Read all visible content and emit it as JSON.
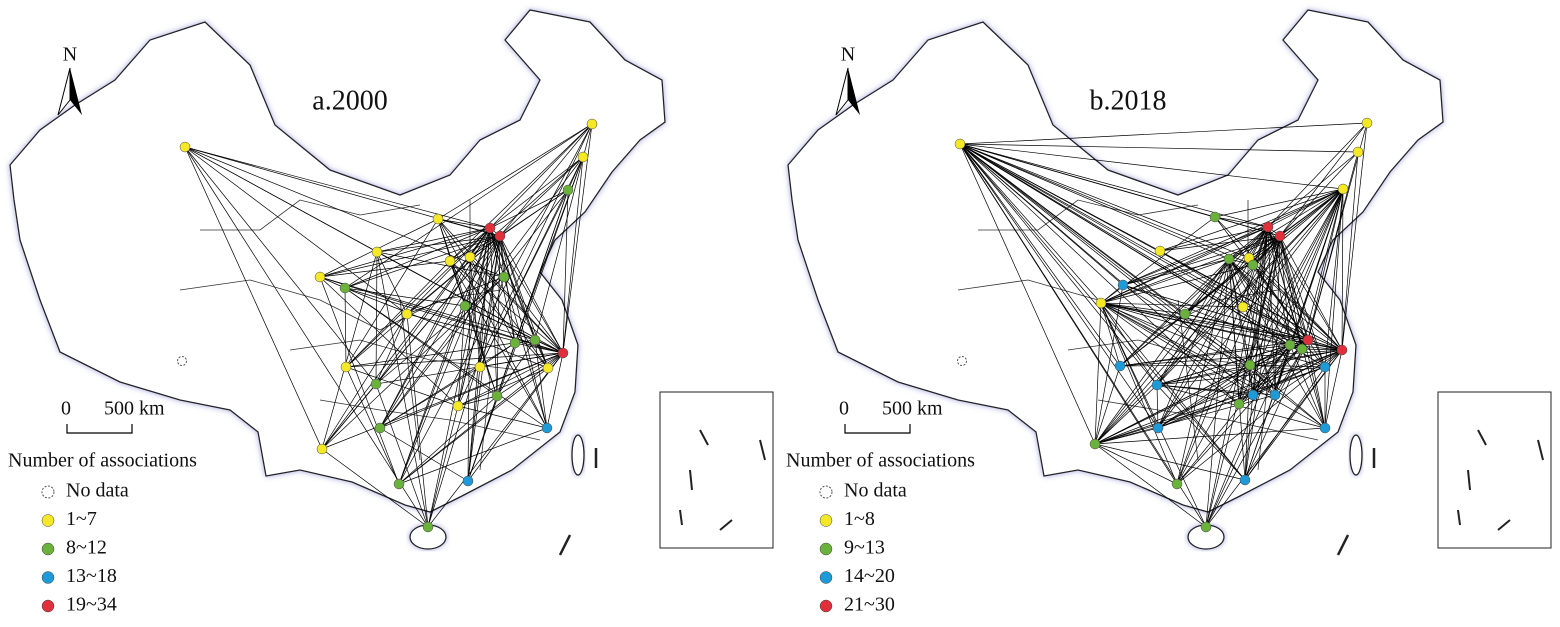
{
  "panels": [
    {
      "title": "a.2000",
      "north": "N",
      "scale": {
        "zero": "0",
        "length": "500 km"
      },
      "legend": {
        "title": "Number of associations",
        "items": [
          {
            "label": "No data"
          },
          {
            "label": "1~7",
            "color": "#f5e827"
          },
          {
            "label": "8~12",
            "color": "#6ab23c"
          },
          {
            "label": "13~18",
            "color": "#1e9ad8"
          },
          {
            "label": "19~34",
            "color": "#e0303c"
          }
        ]
      }
    },
    {
      "title": "b.2018",
      "north": "N",
      "scale": {
        "zero": "0",
        "length": "500 km"
      },
      "legend": {
        "title": "Number of associations",
        "items": [
          {
            "label": "No data"
          },
          {
            "label": "1~8",
            "color": "#f5e827"
          },
          {
            "label": "9~13",
            "color": "#6ab23c"
          },
          {
            "label": "14~20",
            "color": "#1e9ad8"
          },
          {
            "label": "21~30",
            "color": "#e0303c"
          }
        ]
      }
    }
  ]
}
